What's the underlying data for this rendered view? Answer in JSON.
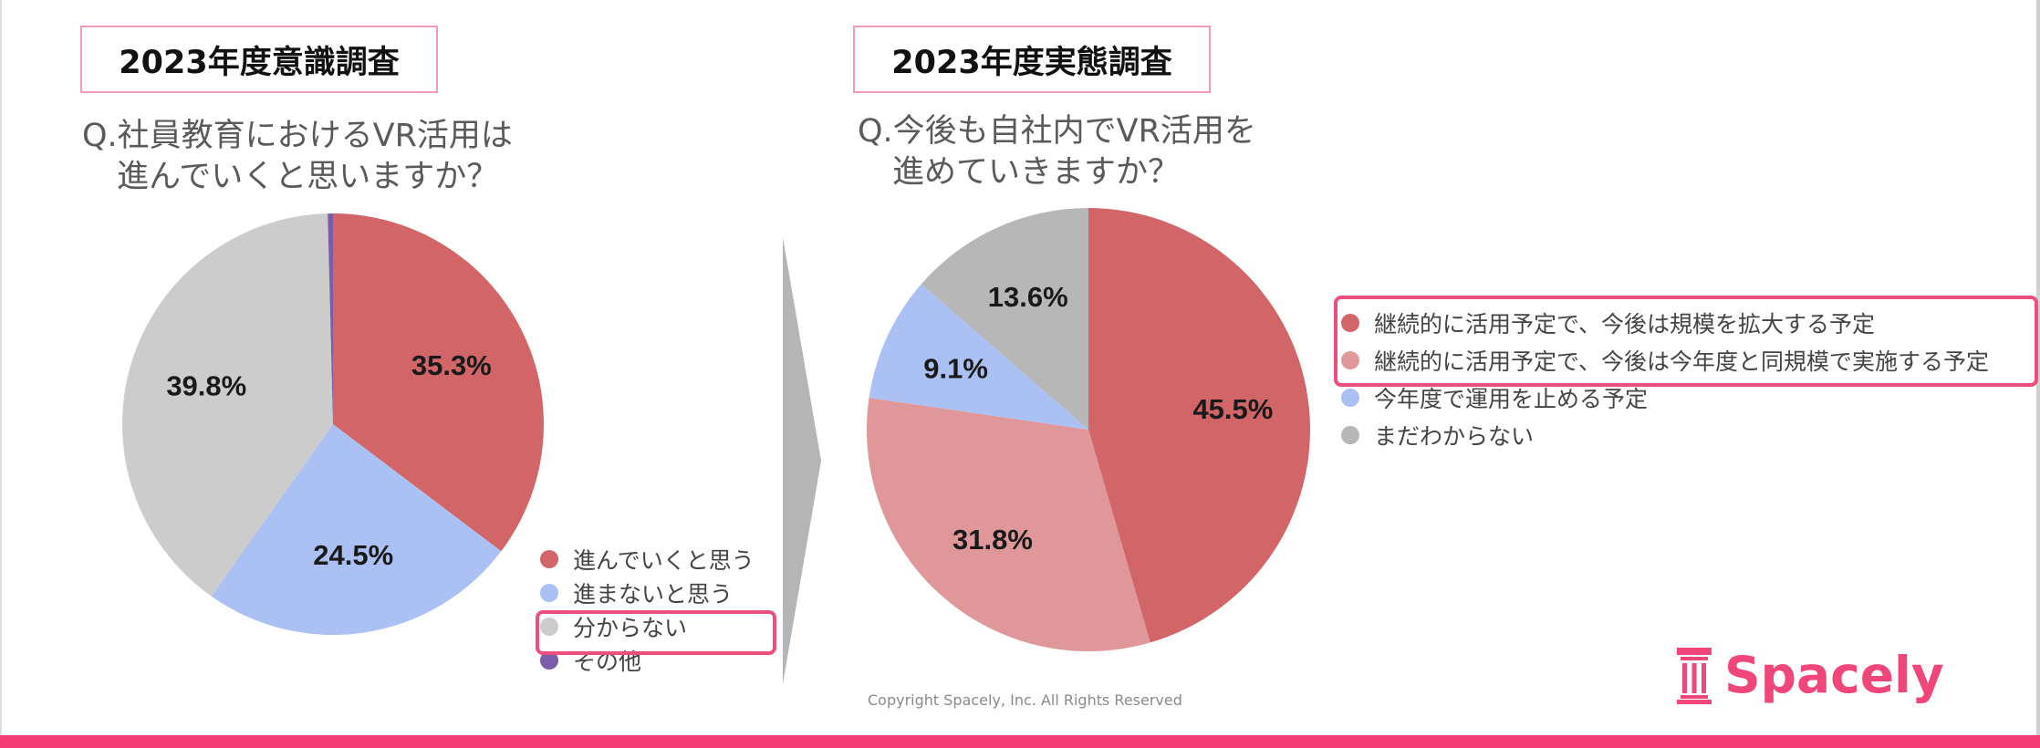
{
  "brand": {
    "name": "Spacely",
    "color": "#f0467a"
  },
  "copyright": "Copyright Spacely, Inc. All Rights Reserved",
  "left": {
    "title": "2023年度意識調査",
    "question": [
      "Q.社員教育におけるVR活用は",
      "進んでいくと思いますか？"
    ]
  },
  "right": {
    "title": "2023年度実態調査",
    "question": [
      "Q.今後も自社内でVR活用を",
      "進めていきますか？"
    ]
  },
  "chart_data": [
    {
      "type": "pie",
      "title": "2023年度意識調査",
      "categories": [
        "進んでいくと思う",
        "進まないと思う",
        "分からない",
        "その他"
      ],
      "values": [
        35.3,
        24.5,
        39.8,
        0.4
      ],
      "labels": [
        "35.3%",
        "24.5%",
        "39.8%",
        ""
      ],
      "colors": [
        "#d26567",
        "#abc0f3",
        "#cccccc",
        "#7b5ea7"
      ],
      "highlighted_legend": [
        "分からない"
      ]
    },
    {
      "type": "pie",
      "title": "2023年度実態調査",
      "categories": [
        "継続的に活用予定で、今後は規模を拡大する予定",
        "継続的に活用予定で、今後は今年度と同規模で実施する予定",
        "今年度で運用を止める予定",
        "まだわからない"
      ],
      "values": [
        45.5,
        31.8,
        9.1,
        13.6
      ],
      "labels": [
        "45.5%",
        "31.8%",
        "9.1%",
        "13.6%"
      ],
      "colors": [
        "#d26567",
        "#e09799",
        "#abc0f3",
        "#b7b7b7"
      ],
      "highlighted_legend": [
        "継続的に活用予定で、今後は規模を拡大する予定",
        "継続的に活用予定で、今後は今年度と同規模で実施する予定"
      ]
    }
  ]
}
